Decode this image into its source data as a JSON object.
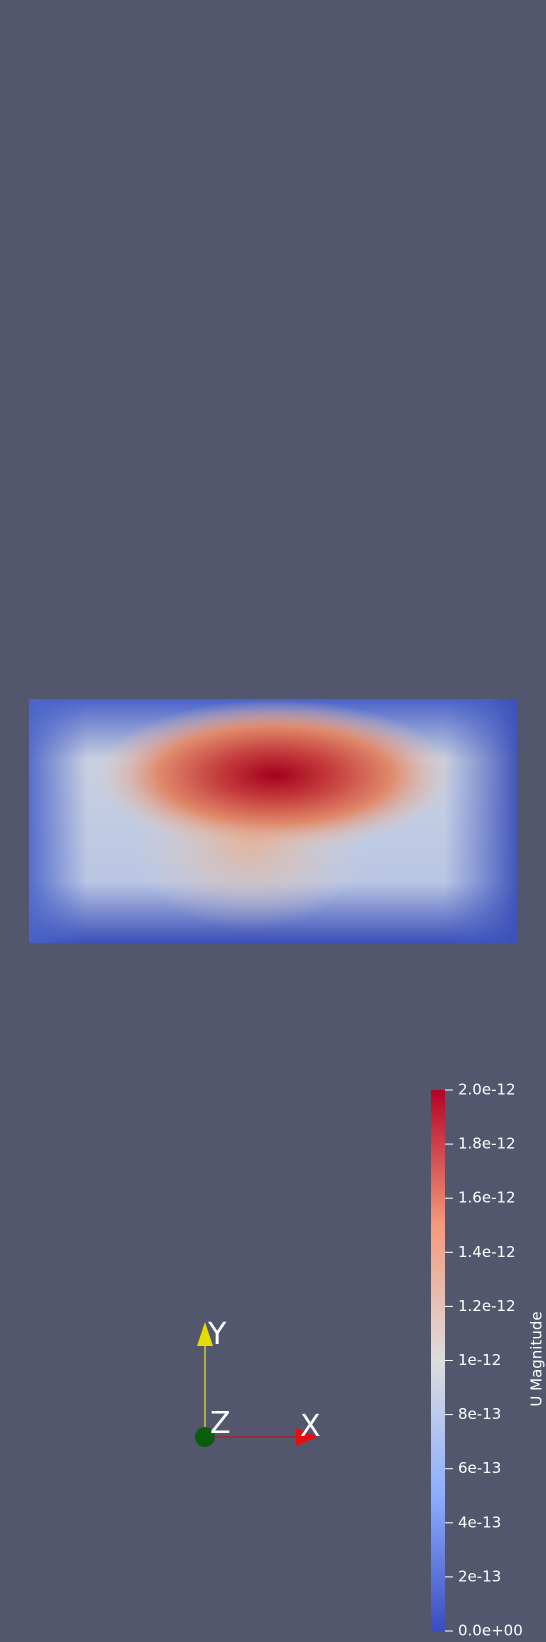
{
  "colorbar": {
    "title": "U Magnitude",
    "tick_labels": [
      "2.0e-12",
      "1.8e-12",
      "1.6e-12",
      "1.4e-12",
      "1.2e-12",
      "1e-12",
      "8e-13",
      "6e-13",
      "4e-13",
      "2e-13",
      "0.0e+00"
    ]
  },
  "axes": {
    "x": "X",
    "y": "Y",
    "z": "Z"
  }
}
